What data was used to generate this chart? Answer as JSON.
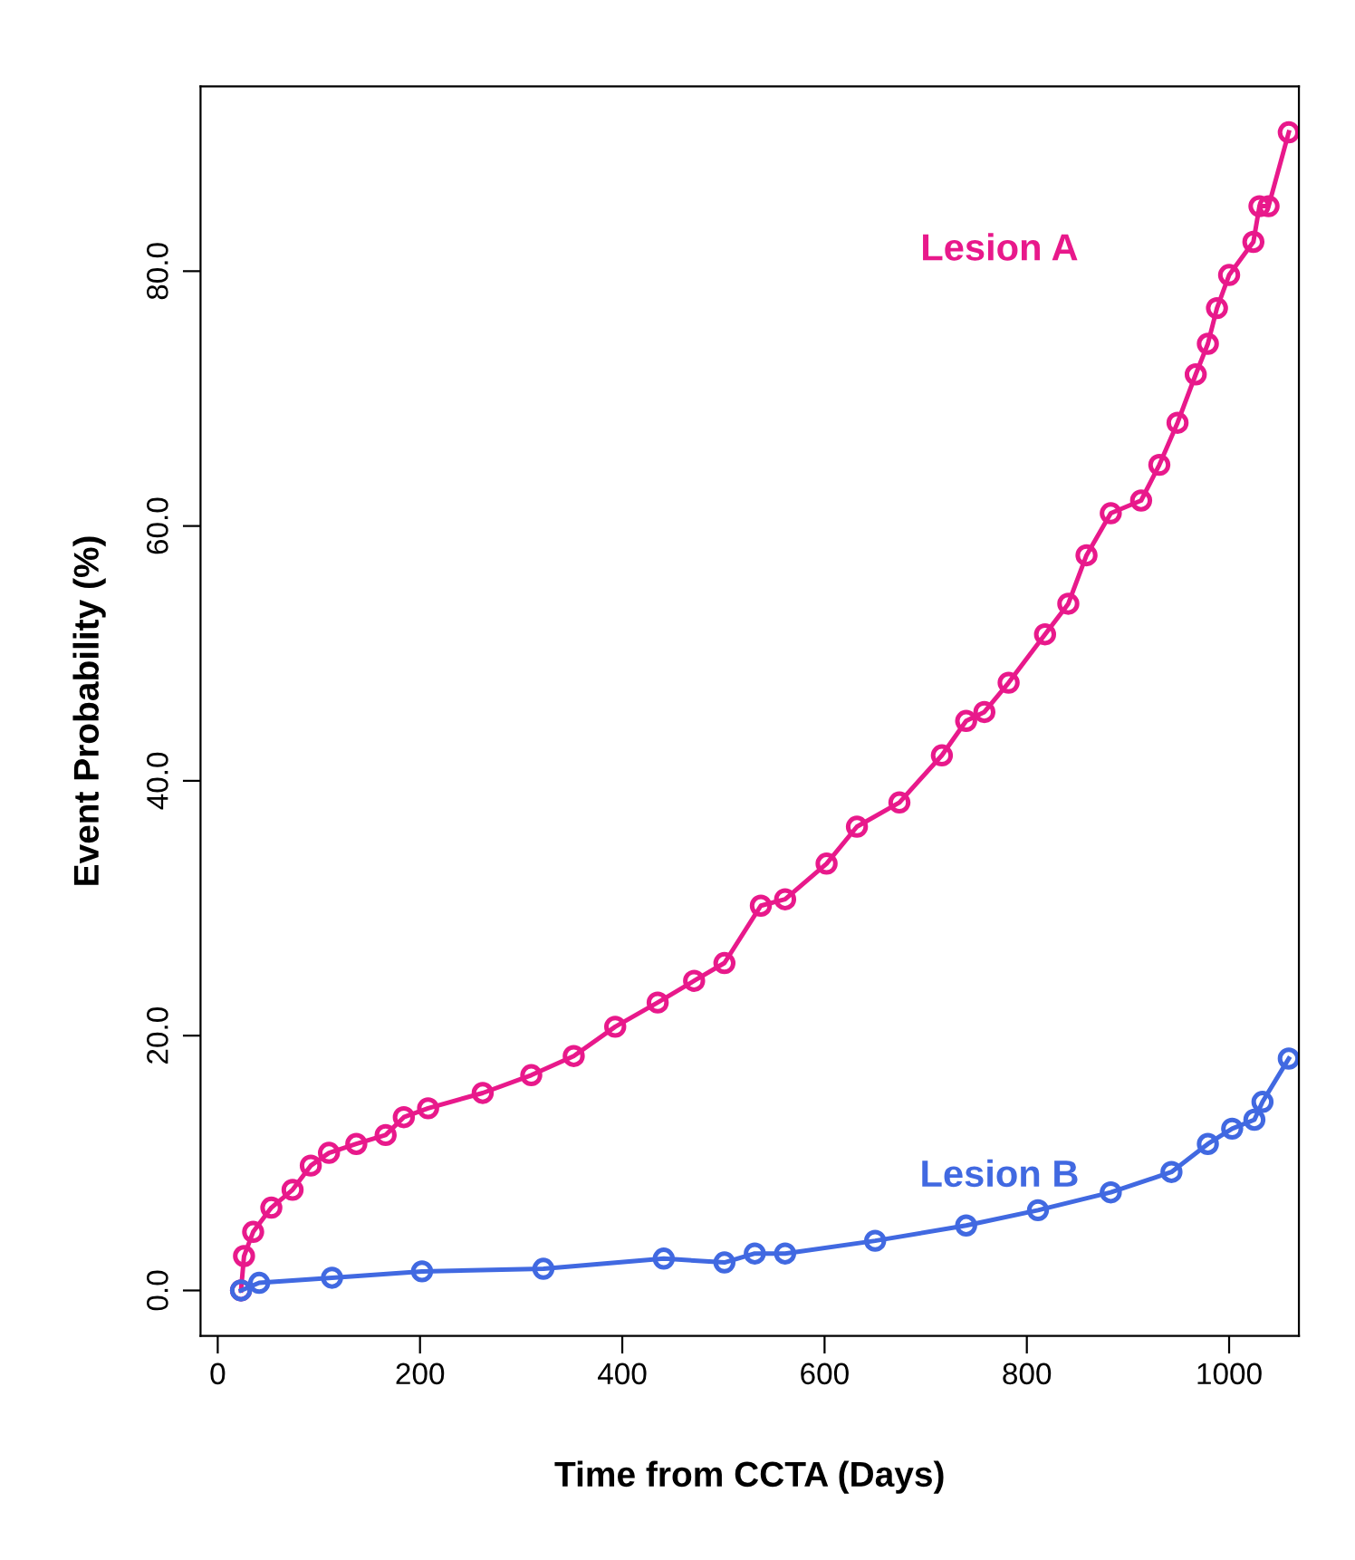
{
  "chart_data": {
    "type": "line",
    "xlabel": "Time from CCTA (Days)",
    "ylabel": "Event Probability (%)",
    "xlim": [
      -17,
      1069
    ],
    "ylim": [
      -3.56,
      94.5
    ],
    "xticks": [
      0,
      200,
      400,
      600,
      800,
      1000
    ],
    "yticks": [
      {
        "value": 0,
        "label": "0.0"
      },
      {
        "value": 20,
        "label": "20.0"
      },
      {
        "value": 40,
        "label": "40.0"
      },
      {
        "value": 60,
        "label": "60.0"
      },
      {
        "value": 80,
        "label": "80.0"
      }
    ],
    "grid": false,
    "legend": false,
    "marker": "circle",
    "line_style": "solid",
    "series": [
      {
        "name": "Lesion A",
        "color": "#e8198b",
        "x": [
          23,
          26,
          35,
          53,
          74,
          92,
          110,
          137,
          166,
          184,
          208,
          262,
          310,
          352,
          393,
          435,
          471,
          501,
          537,
          561,
          602,
          632,
          674,
          716,
          740,
          758,
          782,
          818,
          841,
          859,
          883,
          913,
          931,
          949,
          967,
          979,
          988,
          1000,
          1024,
          1030,
          1039,
          1059
        ],
        "values": [
          0,
          2.7,
          4.6,
          6.5,
          7.9,
          9.8,
          10.8,
          11.5,
          12.2,
          13.6,
          14.3,
          15.5,
          16.9,
          18.4,
          20.7,
          22.6,
          24.3,
          25.7,
          30.2,
          30.7,
          33.5,
          36.4,
          38.3,
          42.0,
          44.7,
          45.4,
          47.7,
          51.5,
          53.9,
          57.7,
          61.0,
          62.0,
          64.8,
          68.1,
          71.9,
          74.3,
          77.1,
          79.7,
          82.3,
          85.1,
          85.1,
          90.9
        ]
      },
      {
        "name": "Lesion B",
        "color": "#4169e1",
        "x": [
          23,
          41,
          113,
          202,
          322,
          441,
          501,
          531,
          561,
          650,
          740,
          811,
          883,
          943,
          979,
          1003,
          1025,
          1033,
          1059
        ],
        "values": [
          0,
          0.6,
          1.0,
          1.5,
          1.7,
          2.5,
          2.2,
          2.9,
          2.9,
          3.9,
          5.1,
          6.3,
          7.7,
          9.3,
          11.5,
          12.7,
          13.4,
          14.8,
          18.2
        ]
      }
    ]
  }
}
